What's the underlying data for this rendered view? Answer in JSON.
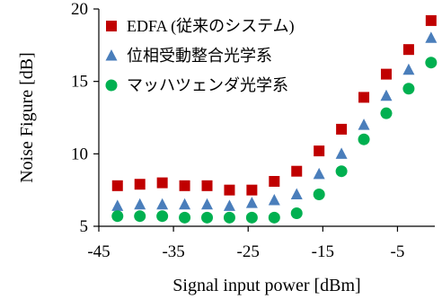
{
  "chart_data": {
    "type": "scatter",
    "title": "",
    "xlabel": "Signal input power [dBm]",
    "ylabel": "Noise Figure [dB]",
    "xlim": [
      -45,
      0
    ],
    "ylim": [
      5,
      20
    ],
    "xticks": [
      -45,
      -35,
      -25,
      -15,
      -5
    ],
    "yticks": [
      5,
      10,
      15,
      20
    ],
    "grid": false,
    "legend_position": "top-left",
    "series": [
      {
        "name": "EDFA (従来のシステム)",
        "marker": "square",
        "color": "#c00000",
        "x": [
          -42.5,
          -39.5,
          -36.5,
          -33.5,
          -30.5,
          -27.5,
          -24.5,
          -21.5,
          -18.5,
          -15.5,
          -12.5,
          -9.5,
          -6.5,
          -3.5,
          -0.5
        ],
        "y": [
          7.8,
          7.9,
          8.0,
          7.8,
          7.8,
          7.5,
          7.5,
          8.1,
          8.8,
          10.2,
          11.7,
          13.9,
          15.5,
          17.2,
          19.2
        ]
      },
      {
        "name": "位相受動整合光学系",
        "marker": "triangle",
        "color": "#4a7ebb",
        "x": [
          -42.5,
          -39.5,
          -36.5,
          -33.5,
          -30.5,
          -27.5,
          -24.5,
          -21.5,
          -18.5,
          -15.5,
          -12.5,
          -9.5,
          -6.5,
          -3.5,
          -0.5
        ],
        "y": [
          6.4,
          6.5,
          6.5,
          6.5,
          6.5,
          6.4,
          6.6,
          6.8,
          7.2,
          8.6,
          10.0,
          12.0,
          14.0,
          15.8,
          18.0
        ]
      },
      {
        "name": "マッハツェンダ光学系",
        "marker": "circle",
        "color": "#00b050",
        "x": [
          -42.5,
          -39.5,
          -36.5,
          -33.5,
          -30.5,
          -27.5,
          -24.5,
          -21.5,
          -18.5,
          -15.5,
          -12.5,
          -9.5,
          -6.5,
          -3.5,
          -0.5
        ],
        "y": [
          5.7,
          5.7,
          5.7,
          5.6,
          5.6,
          5.6,
          5.6,
          5.6,
          5.9,
          7.2,
          8.8,
          11.0,
          12.8,
          14.5,
          16.3
        ]
      }
    ]
  }
}
